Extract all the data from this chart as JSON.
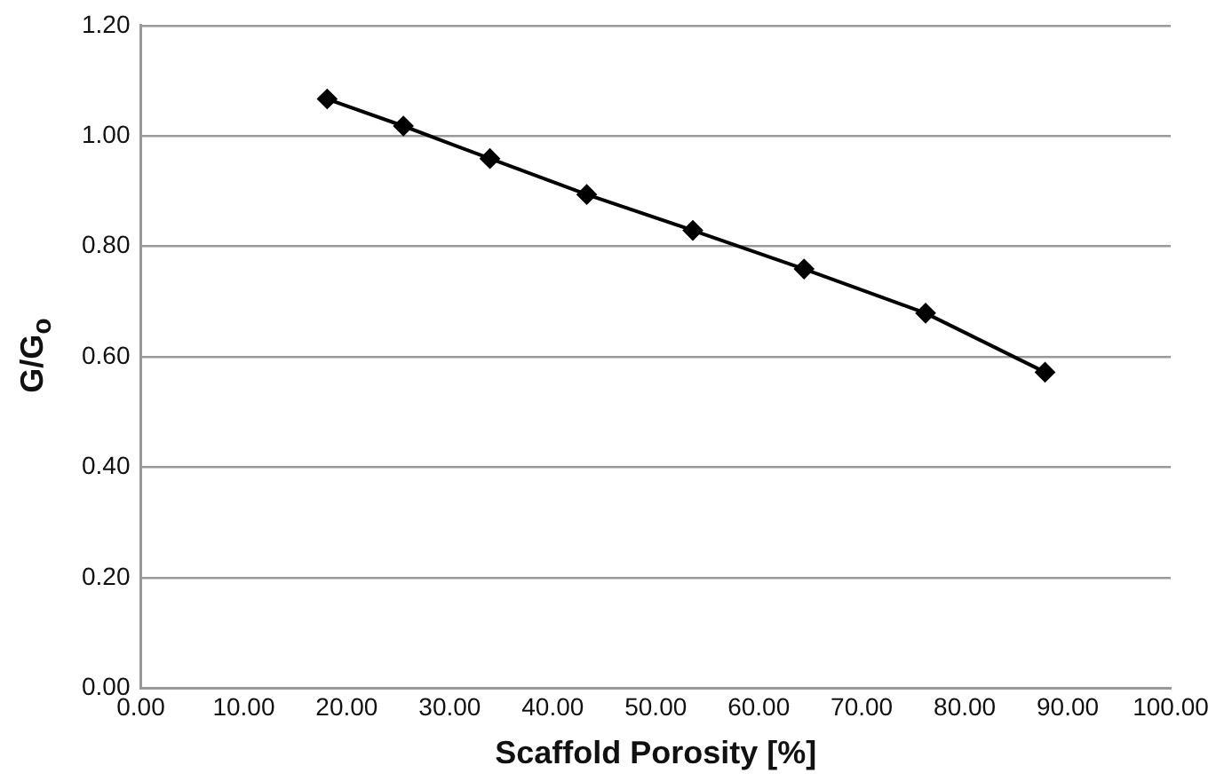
{
  "chart_data": {
    "type": "line",
    "xlabel": "Scaffold Porosity [%]",
    "ylabel": "G/G$_{o}$",
    "x": [
      18.1,
      25.5,
      33.9,
      43.3,
      53.6,
      64.4,
      76.2,
      87.8
    ],
    "series": [
      {
        "color": "#000000",
        "values": [
          1.067,
          1.018,
          0.959,
          0.894,
          0.829,
          0.759,
          0.679,
          0.572
        ]
      }
    ],
    "xlim": [
      0,
      100
    ],
    "ylim": [
      0,
      1.2
    ],
    "xticks": [
      {
        "value": 0,
        "label": "0.00"
      },
      {
        "value": 10,
        "label": "10.00"
      },
      {
        "value": 20,
        "label": "20.00"
      },
      {
        "value": 30,
        "label": "30.00"
      },
      {
        "value": 40,
        "label": "40.00"
      },
      {
        "value": 50,
        "label": "50.00"
      },
      {
        "value": 60,
        "label": "60.00"
      },
      {
        "value": 70,
        "label": "70.00"
      },
      {
        "value": 80,
        "label": "80.00"
      },
      {
        "value": 90,
        "label": "90.00"
      },
      {
        "value": 100,
        "label": "100.00"
      }
    ],
    "yticks": [
      {
        "value": 0,
        "label": "0.00"
      },
      {
        "value": 0.2,
        "label": "0.20"
      },
      {
        "value": 0.4,
        "label": "0.40"
      },
      {
        "value": 0.6,
        "label": "0.60"
      },
      {
        "value": 0.8,
        "label": "0.80"
      },
      {
        "value": 1,
        "label": "1.00"
      },
      {
        "value": 1.2,
        "label": "1.20"
      }
    ],
    "grid": "y",
    "legend": false,
    "marker": "diamond",
    "line_style": "solid"
  }
}
